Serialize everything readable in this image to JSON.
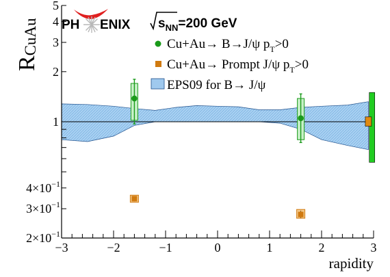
{
  "logo": {
    "text_left": "PH",
    "text_right": "ENIX"
  },
  "chart_data": {
    "type": "scatter",
    "title": "",
    "header_energy": {
      "sqrt": "s",
      "sub": "NN",
      "value": "=200 GeV"
    },
    "xlabel": "rapidity",
    "ylabel": {
      "main": "R",
      "sub": "CuAu"
    },
    "xlim": [
      -3,
      3
    ],
    "ylim": [
      0.2,
      5
    ],
    "log_y": true,
    "grid": false,
    "legend_placement": "top-center",
    "x_ticks": [
      {
        "value": -3,
        "label": "−3"
      },
      {
        "value": -2,
        "label": "−2"
      },
      {
        "value": -1,
        "label": "−1"
      },
      {
        "value": 0,
        "label": "0"
      },
      {
        "value": 1,
        "label": "1"
      },
      {
        "value": 2,
        "label": "2"
      },
      {
        "value": 3,
        "label": "3"
      }
    ],
    "y_ticks": [
      {
        "value": 0.2,
        "label": "2×10",
        "exp": "−1"
      },
      {
        "value": 0.3,
        "label": "3×10",
        "exp": "−1"
      },
      {
        "value": 0.4,
        "label": "4×10",
        "exp": "−1"
      },
      {
        "value": 1,
        "label": "1",
        "exp": ""
      },
      {
        "value": 2,
        "label": "2",
        "exp": ""
      },
      {
        "value": 3,
        "label": "3",
        "exp": ""
      },
      {
        "value": 4,
        "label": "4",
        "exp": ""
      },
      {
        "value": 5,
        "label": "5",
        "exp": ""
      }
    ],
    "legend": [
      {
        "marker": "circle",
        "color": "#1a9a1a",
        "text": "Cu+Au→ B→J/ψ p",
        "sub": "T",
        "tail": ">0"
      },
      {
        "marker": "square",
        "color": "#d07a10",
        "text": "Cu+Au→ Prompt J/ψ p",
        "sub": "T",
        "tail": ">0"
      },
      {
        "marker": "band",
        "color": "#9fc9ee",
        "text": "EPS09 for B→ J/ψ",
        "sub": "",
        "tail": ""
      }
    ],
    "series": [
      {
        "name": "Cu+Au→ B→J/ψ pT>0",
        "color": "#1a9a1a",
        "points": [
          {
            "x": -1.6,
            "y": 1.38,
            "stat_lo": 0.97,
            "stat_hi": 1.8,
            "sys_lo": 1.02,
            "sys_hi": 1.7
          },
          {
            "x": 1.6,
            "y": 1.05,
            "stat_lo": 0.75,
            "stat_hi": 1.47,
            "sys_lo": 0.78,
            "sys_hi": 1.38
          }
        ]
      },
      {
        "name": "Cu+Au→ Prompt J/ψ pT>0",
        "color": "#d07a10",
        "points": [
          {
            "x": -1.6,
            "y": 0.345,
            "stat_lo": 0.332,
            "stat_hi": 0.358,
            "sys_lo": 0.328,
            "sys_hi": 0.362
          },
          {
            "x": 1.6,
            "y": 0.277,
            "stat_lo": 0.264,
            "stat_hi": 0.292,
            "sys_lo": 0.263,
            "sys_hi": 0.297
          }
        ]
      }
    ],
    "band": {
      "name": "EPS09 for B→ J/ψ",
      "x": [
        -3,
        -2.5,
        -2,
        -1.6,
        -1.2,
        -0.8,
        -0.4,
        0,
        0.4,
        0.8,
        1.2,
        1.6,
        2,
        2.5,
        2.9
      ],
      "upper": [
        1.28,
        1.27,
        1.24,
        1.2,
        1.17,
        1.22,
        1.25,
        1.24,
        1.23,
        1.18,
        1.18,
        1.22,
        1.24,
        1.26,
        1.32
      ],
      "lower": [
        0.78,
        0.76,
        0.82,
        0.95,
        1.0,
        1.0,
        1.0,
        1.0,
        1.0,
        1.0,
        0.98,
        0.9,
        0.78,
        0.72,
        0.68
      ]
    },
    "global_boxes": [
      {
        "name": "global-uncertainty-green",
        "x": 2.97,
        "y_lo": 0.57,
        "y_hi": 1.5,
        "color": "#22cc22"
      },
      {
        "name": "global-uncertainty-orange",
        "x": 2.9,
        "y_lo": 0.94,
        "y_hi": 1.07,
        "color": "#e08a10"
      }
    ],
    "reference_line": 1
  }
}
